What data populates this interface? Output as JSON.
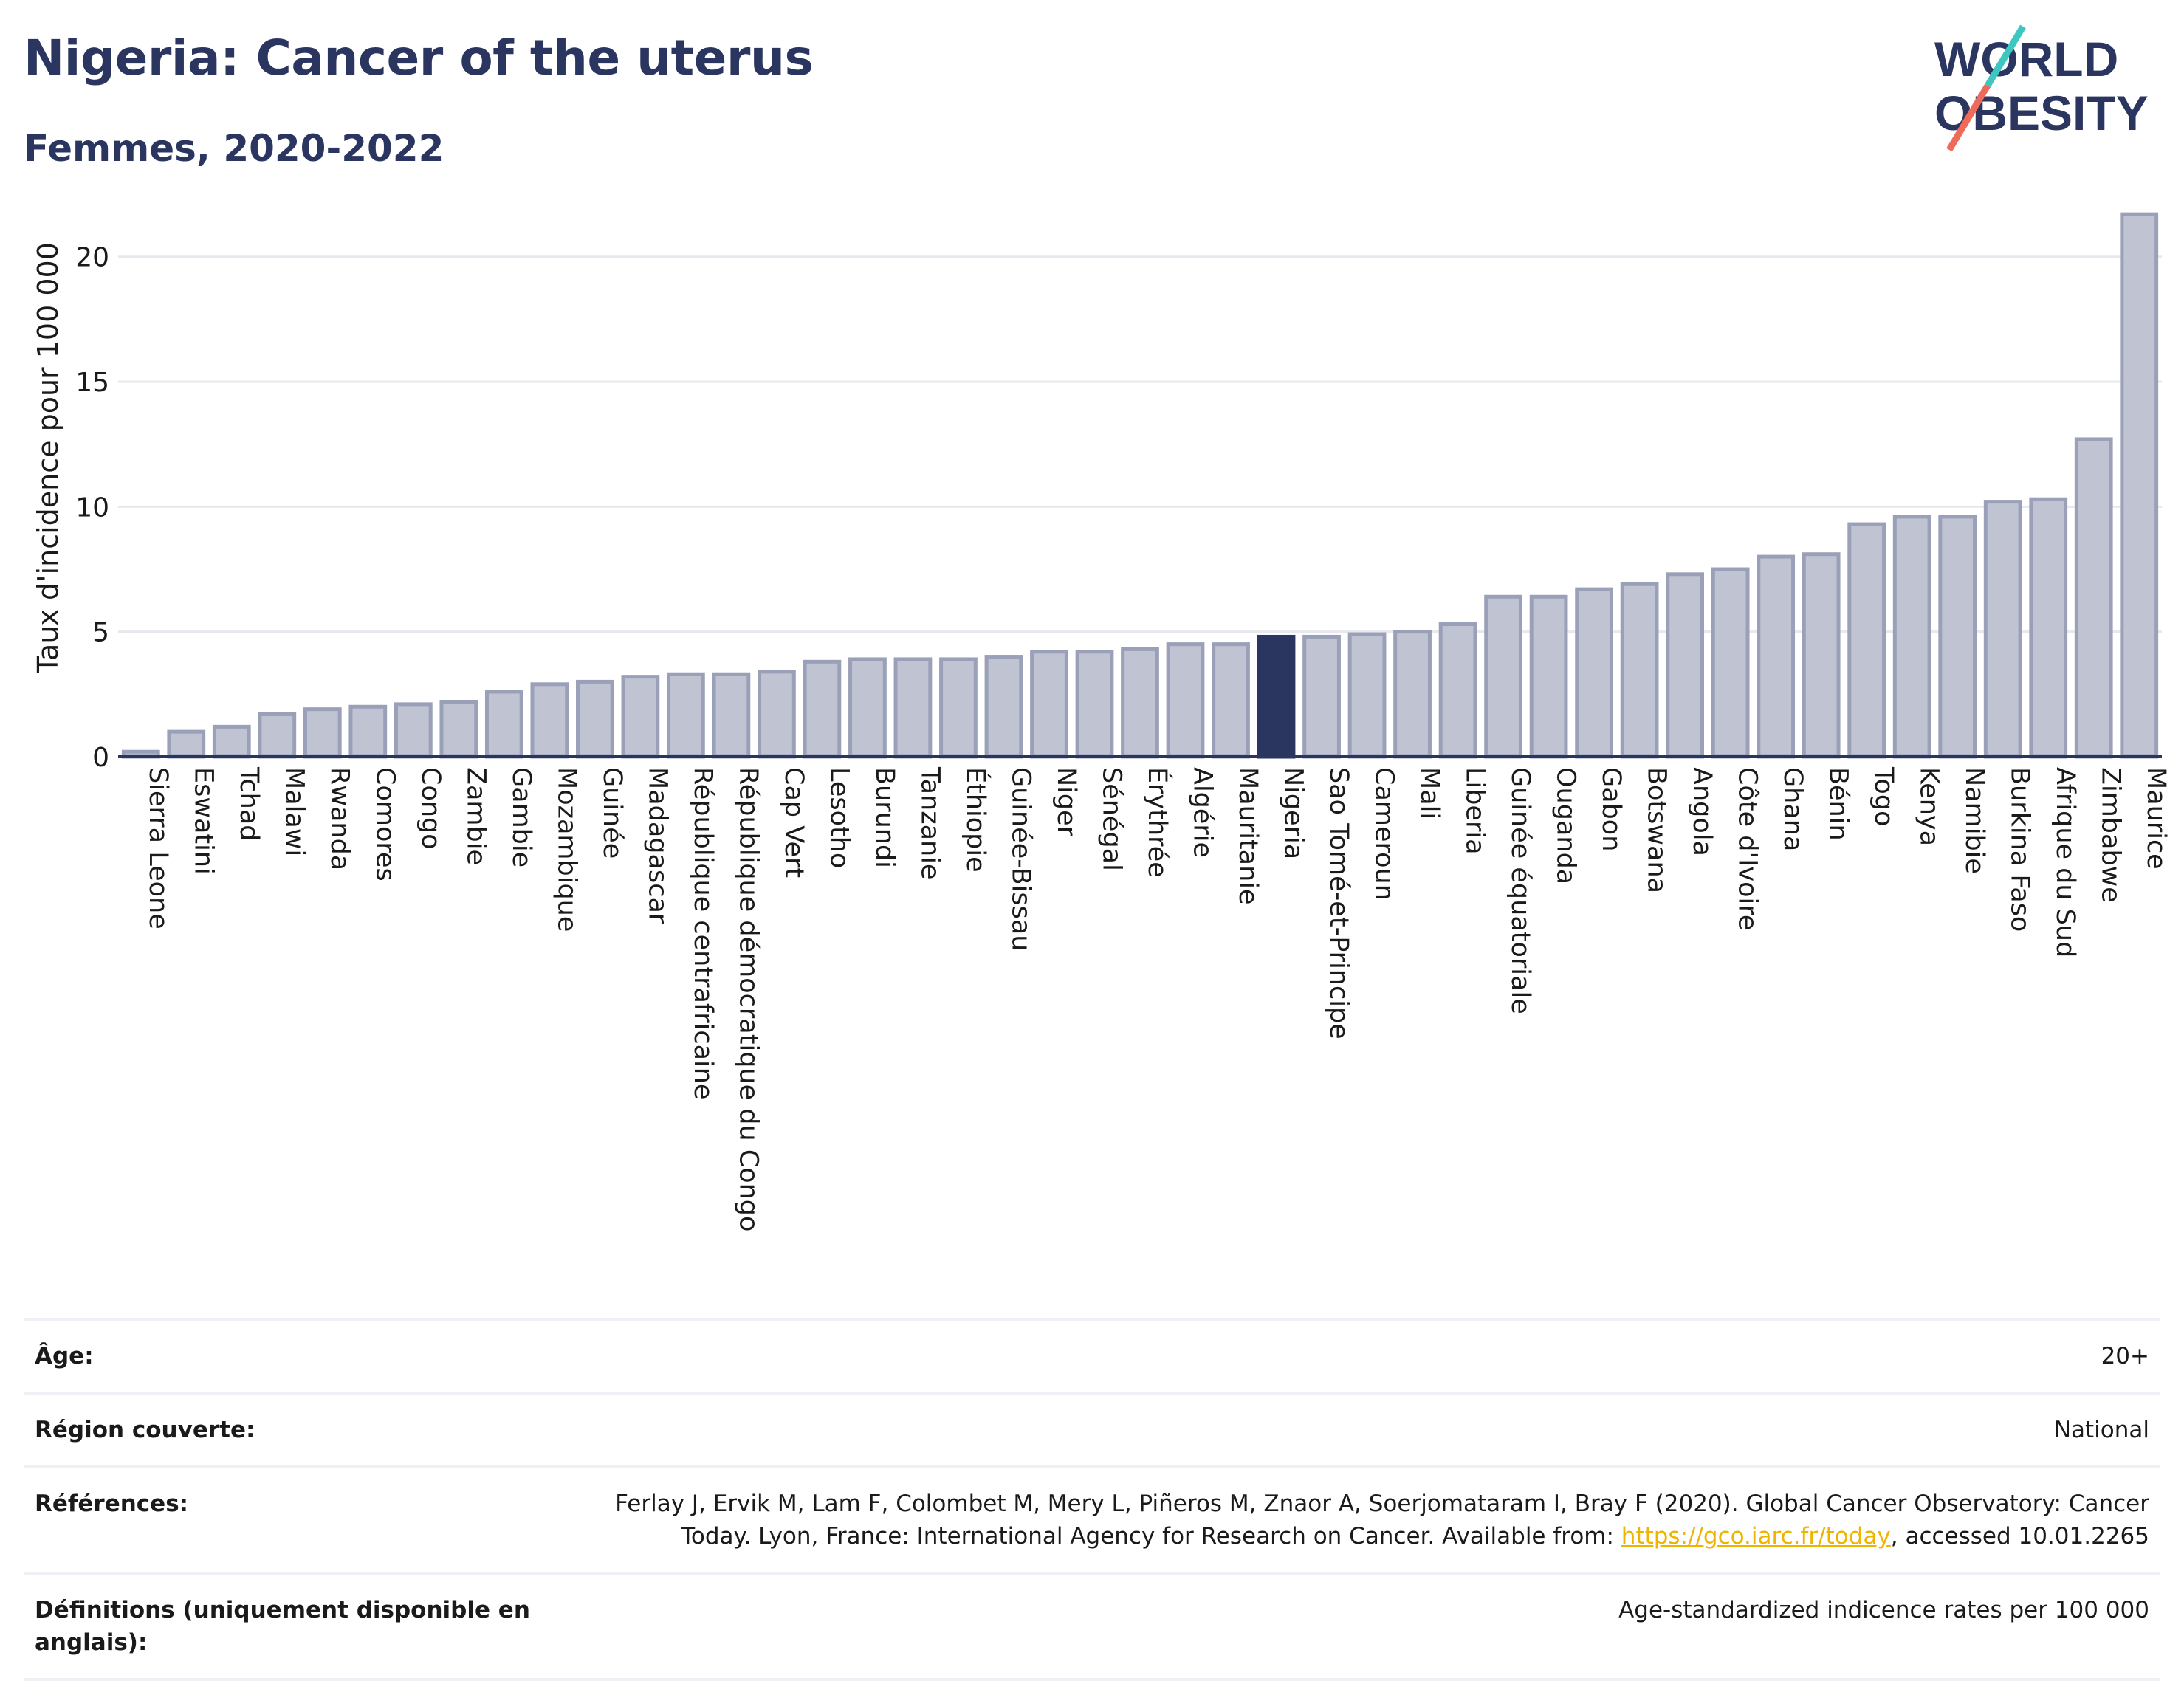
{
  "header": {
    "title": "Nigeria: Cancer of the uterus",
    "subtitle": "Femmes, 2020-2022"
  },
  "logo": {
    "line1": "WORLD",
    "line2": "OBESITY"
  },
  "colors": {
    "bar_fill": "#bfc3d2",
    "bar_stroke": "#9aa0b8",
    "highlight": "#2a3560",
    "grid": "#e6e8ee",
    "axis": "#2a3560",
    "logo_teal": "#3ec7c0",
    "logo_coral": "#ee6b5b"
  },
  "chart_data": {
    "type": "bar",
    "ylabel": "Taux d'incidence pour 100 000",
    "xlabel": "",
    "ylim": [
      0,
      22
    ],
    "yticks": [
      0,
      5,
      10,
      15,
      20
    ],
    "grid": true,
    "highlight": "Nigeria",
    "categories": [
      "Sierra Leone",
      "Eswatini",
      "Tchad",
      "Malawi",
      "Rwanda",
      "Comores",
      "Congo",
      "Zambie",
      "Gambie",
      "Mozambique",
      "Guinée",
      "Madagascar",
      "République centrafricaine",
      "République démocratique du Congo",
      "Cap Vert",
      "Lesotho",
      "Burundi",
      "Tanzanie",
      "Éthiopie",
      "Guinée-Bissau",
      "Niger",
      "Sénégal",
      "Érythrée",
      "Algérie",
      "Mauritanie",
      "Nigeria",
      "Sao Tomé-et-Principe",
      "Cameroun",
      "Mali",
      "Liberia",
      "Guinée équatoriale",
      "Ouganda",
      "Gabon",
      "Botswana",
      "Angola",
      "Côte d'Ivoire",
      "Ghana",
      "Bénin",
      "Togo",
      "Kenya",
      "Namibie",
      "Burkina Faso",
      "Afrique du Sud",
      "Zimbabwe",
      "Maurice"
    ],
    "values": [
      0.2,
      1.0,
      1.2,
      1.7,
      1.9,
      2.0,
      2.1,
      2.2,
      2.6,
      2.9,
      3.0,
      3.2,
      3.3,
      3.3,
      3.4,
      3.8,
      3.9,
      3.9,
      3.9,
      4.0,
      4.2,
      4.2,
      4.3,
      4.5,
      4.5,
      4.8,
      4.8,
      4.9,
      5.0,
      5.3,
      6.4,
      6.4,
      6.7,
      6.9,
      7.3,
      7.5,
      8.0,
      8.1,
      9.3,
      9.6,
      9.6,
      10.2,
      10.3,
      12.7,
      21.7
    ]
  },
  "meta": {
    "age_label": "Âge:",
    "age_value": "20+",
    "region_label": "Région couverte:",
    "region_value": "National",
    "references_label": "Références:",
    "references_text_line1": "Ferlay J, Ervik M, Lam F, Colombet M, Mery L, Piñeros M, Znaor A, Soerjomataram I, Bray F (2020). Global Cancer Observatory: Cancer",
    "references_text_before_link": "Today. Lyon, France: International Agency for Research on Cancer. Available from: ",
    "references_link": "https://gco.iarc.fr/today",
    "references_text_after_link": ", accessed 10.01.2265",
    "definitions_label": "Définitions (uniquement disponible en anglais):",
    "definitions_value": "Age-standardized indicence rates per 100 000"
  }
}
